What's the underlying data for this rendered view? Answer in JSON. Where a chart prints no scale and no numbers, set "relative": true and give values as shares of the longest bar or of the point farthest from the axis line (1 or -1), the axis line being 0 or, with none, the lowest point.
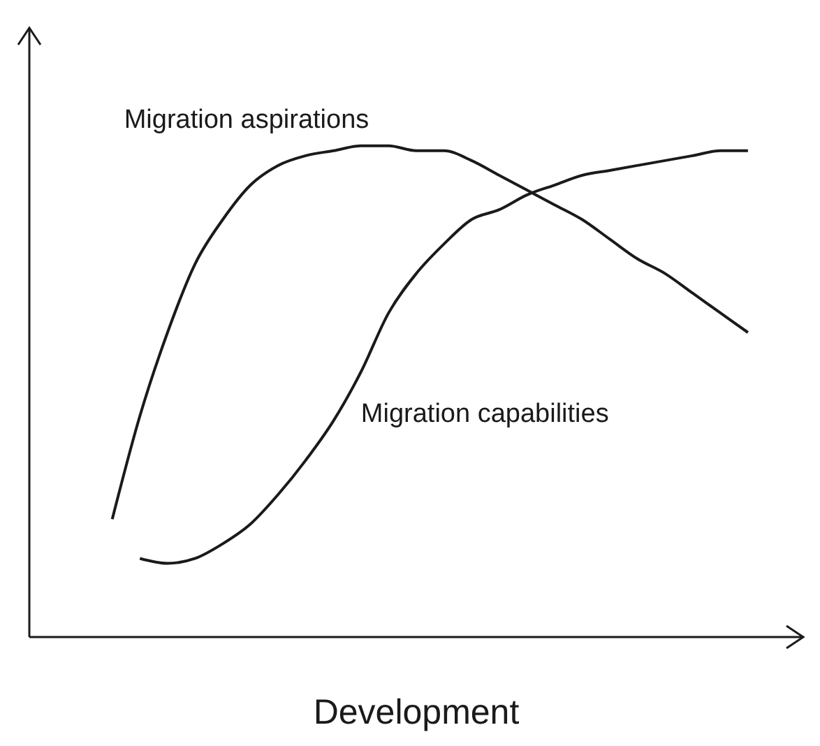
{
  "chart_data": {
    "type": "line",
    "relative": true,
    "xlabel": "Development",
    "categories": [
      null,
      null,
      null,
      null,
      null,
      null,
      null,
      null,
      null,
      null,
      null,
      null,
      null,
      null,
      null,
      null,
      null,
      null,
      null,
      null,
      null,
      null,
      null,
      null
    ],
    "series": [
      {
        "name": "Migration aspirations",
        "color": "#1a1a1a",
        "values": [
          0.24,
          0.45,
          0.62,
          0.76,
          0.85,
          0.92,
          0.96,
          0.98,
          0.99,
          1,
          1,
          0.99,
          0.99,
          0.97,
          0.94,
          0.91,
          0.88,
          0.85,
          0.81,
          0.77,
          0.74,
          0.7,
          0.66,
          0.62
        ]
      },
      {
        "name": "Migration capabilities",
        "color": "#1a1a1a",
        "values": [
          null,
          0.16,
          0.15,
          0.16,
          0.19,
          0.23,
          0.29,
          0.36,
          0.44,
          0.54,
          0.66,
          0.74,
          0.8,
          0.85,
          0.87,
          0.9,
          0.92,
          0.94,
          0.95,
          0.96,
          0.97,
          0.98,
          0.99,
          0.99
        ]
      }
    ],
    "grid": false,
    "legend": false,
    "marker": "none",
    "line_style": "solid",
    "tick_labels": false
  }
}
